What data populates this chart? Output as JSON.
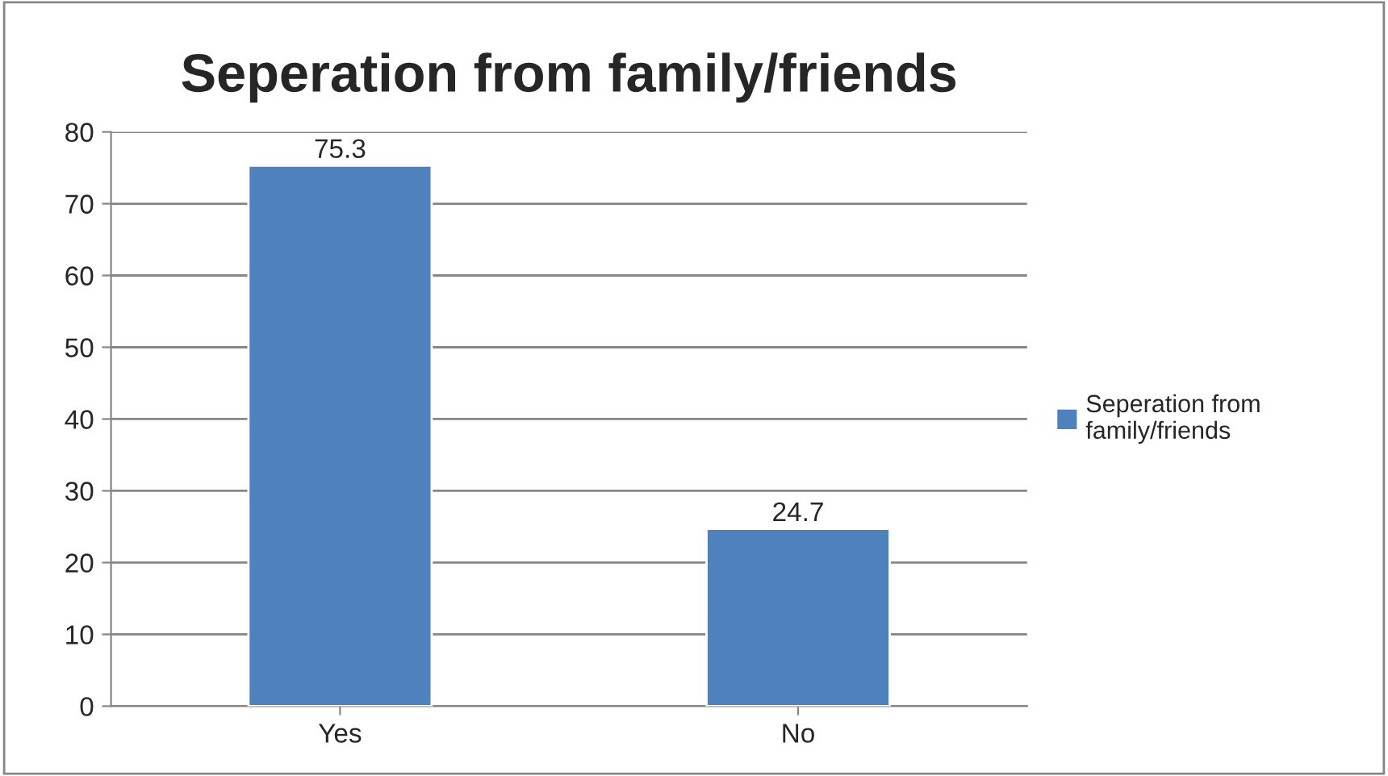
{
  "chart_data": {
    "type": "bar",
    "title": "Seperation from family/friends",
    "categories": [
      "Yes",
      "No"
    ],
    "series": [
      {
        "name": "Seperation from family/friends",
        "color": "#4f81bd",
        "values": [
          75.3,
          24.7
        ]
      }
    ],
    "ylim": [
      0,
      80
    ],
    "yticks": [
      0,
      10,
      20,
      30,
      40,
      50,
      60,
      70,
      80
    ],
    "grid": "y",
    "legend": "right",
    "data_labels": true
  }
}
